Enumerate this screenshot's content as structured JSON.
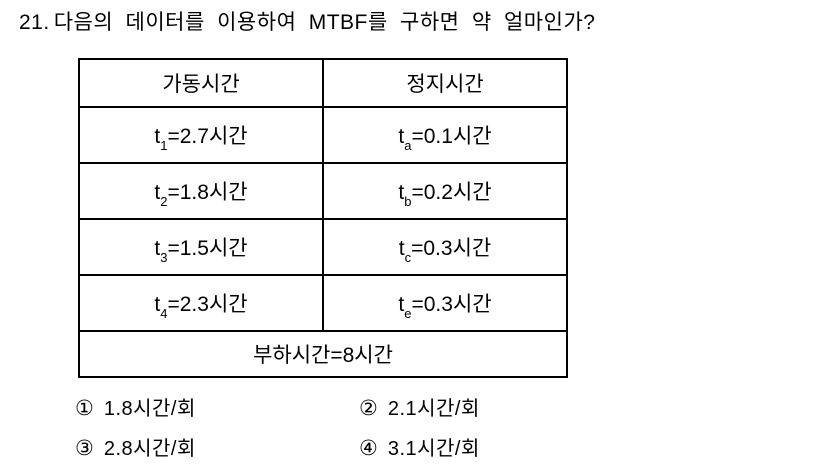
{
  "question": {
    "number": "21.",
    "text": "다음의 데이터를 이용하여 MTBF를 구하면 약 얼마인가?"
  },
  "table": {
    "headers": [
      "가동시간",
      "정지시간"
    ],
    "rows": [
      {
        "left": {
          "base": "t",
          "sub": "1",
          "rest": "=2.7시간"
        },
        "right": {
          "base": "t",
          "sub": "a",
          "rest": "=0.1시간"
        }
      },
      {
        "left": {
          "base": "t",
          "sub": "2",
          "rest": "=1.8시간"
        },
        "right": {
          "base": "t",
          "sub": "b",
          "rest": "=0.2시간"
        }
      },
      {
        "left": {
          "base": "t",
          "sub": "3",
          "rest": "=1.5시간"
        },
        "right": {
          "base": "t",
          "sub": "c",
          "rest": "=0.3시간"
        }
      },
      {
        "left": {
          "base": "t",
          "sub": "4",
          "rest": "=2.3시간"
        },
        "right": {
          "base": "t",
          "sub": "e",
          "rest": "=0.3시간"
        }
      }
    ],
    "footer": "부하시간=8시간"
  },
  "options": [
    {
      "marker": "①",
      "label": "1.8시간/회"
    },
    {
      "marker": "②",
      "label": "2.1시간/회"
    },
    {
      "marker": "③",
      "label": "2.8시간/회"
    },
    {
      "marker": "④",
      "label": "3.1시간/회"
    }
  ],
  "colors": {
    "text": "#000000",
    "background": "#ffffff",
    "table_border": "#000000"
  }
}
